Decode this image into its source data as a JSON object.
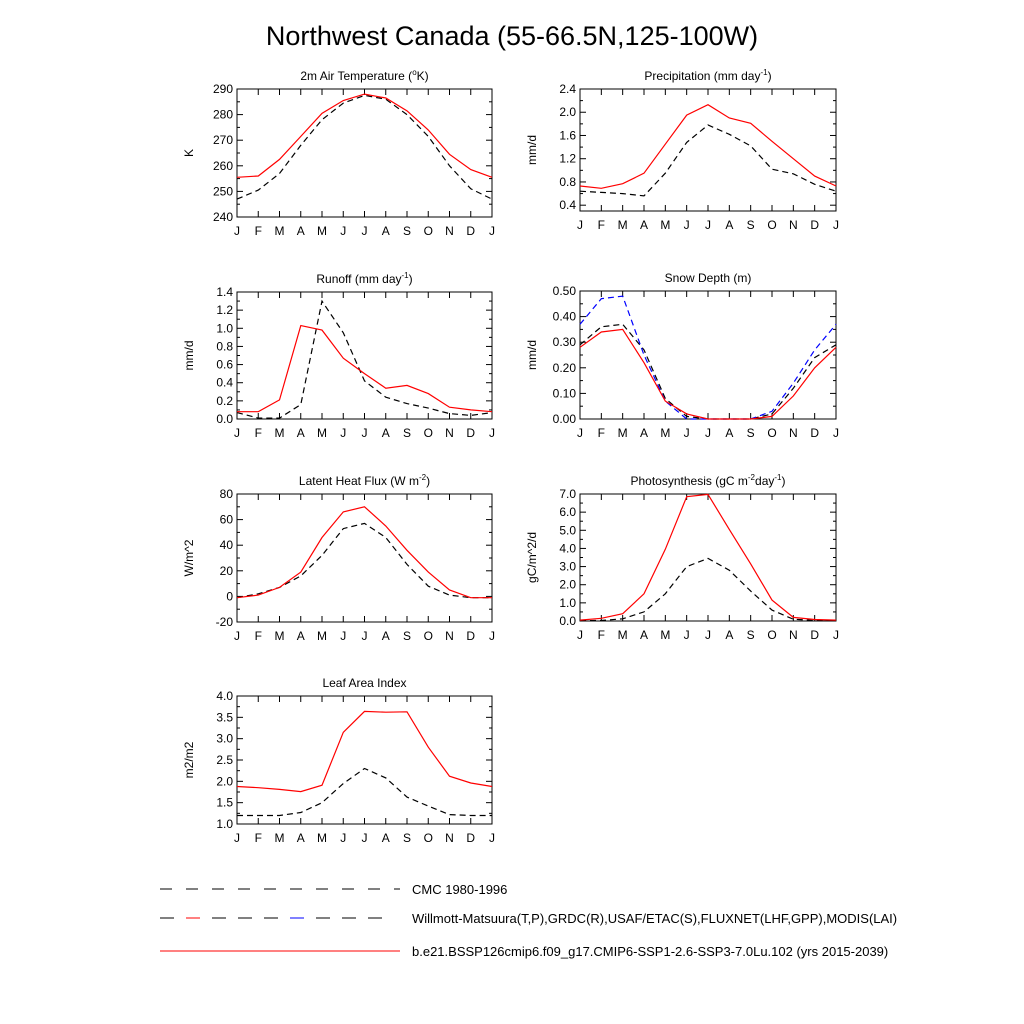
{
  "title": "Northwest Canada (55-66.5N,125-100W)",
  "months": [
    "J",
    "F",
    "M",
    "A",
    "M",
    "J",
    "J",
    "A",
    "S",
    "O",
    "N",
    "D",
    "J"
  ],
  "colors": {
    "obs": "#000000",
    "model": "#ff0000",
    "snow_obs2": "#0000ff"
  },
  "legend": [
    {
      "label": "CMC 1980-1996",
      "style": "dash-black"
    },
    {
      "label": "Willmott-Matsuura(T,P),GRDC(R),USAF/ETAC(S),FLUXNET(LHF,GPP),MODIS(LAI)",
      "style": "dash-multi"
    },
    {
      "label": "b.e21.BSSP126cmip6.f09_g17.CMIP6-SSP1-2.6-SSP3-7.0Lu.102 (yrs 2015-2039)",
      "style": "solid-red"
    }
  ],
  "chart_data": [
    {
      "id": "temp",
      "type": "line",
      "title": "2m Air Temperature (",
      "title_sup": "o",
      "title_after": "K)",
      "ylabel": "K",
      "ylim": [
        240,
        290
      ],
      "yticks": [
        240,
        250,
        260,
        270,
        280,
        290
      ],
      "ytick_labels": [
        "240",
        "250",
        "260",
        "270",
        "280",
        "290"
      ],
      "x": [
        "J",
        "F",
        "M",
        "A",
        "M",
        "J",
        "J",
        "A",
        "S",
        "O",
        "N",
        "D",
        "J"
      ],
      "series": [
        {
          "role": "obs",
          "style": "dash",
          "color": "#000000",
          "values": [
            247,
            250.5,
            257,
            268,
            278,
            284.5,
            287.5,
            286,
            280,
            271.5,
            260,
            251,
            247
          ]
        },
        {
          "role": "model",
          "style": "solid",
          "color": "#ff0000",
          "values": [
            255.5,
            256,
            262.5,
            271.5,
            280.5,
            285.5,
            288,
            286.5,
            281.5,
            274,
            264.5,
            258.5,
            255.5
          ]
        }
      ]
    },
    {
      "id": "precip",
      "type": "line",
      "title": "Precipitation (mm day",
      "title_sup": "-1",
      "title_after": ")",
      "ylabel": "mm/d",
      "ylim": [
        0.3,
        2.4
      ],
      "yticks": [
        0.4,
        0.8,
        1.2,
        1.6,
        2.0,
        2.4
      ],
      "ytick_labels": [
        "0.4",
        "0.8",
        "1.2",
        "1.6",
        "2.0",
        "2.4"
      ],
      "x": [
        "J",
        "F",
        "M",
        "A",
        "M",
        "J",
        "J",
        "A",
        "S",
        "O",
        "N",
        "D",
        "J"
      ],
      "series": [
        {
          "role": "obs",
          "style": "dash",
          "color": "#000000",
          "values": [
            0.64,
            0.62,
            0.6,
            0.56,
            0.95,
            1.48,
            1.78,
            1.62,
            1.42,
            1.02,
            0.94,
            0.76,
            0.64
          ]
        },
        {
          "role": "model",
          "style": "solid",
          "color": "#ff0000",
          "values": [
            0.73,
            0.69,
            0.77,
            0.95,
            1.45,
            1.95,
            2.13,
            1.9,
            1.81,
            1.5,
            1.2,
            0.9,
            0.73
          ]
        }
      ]
    },
    {
      "id": "runoff",
      "type": "line",
      "title": "Runoff (mm day",
      "title_sup": "-1",
      "title_after": ")",
      "ylabel": "mm/d",
      "ylim": [
        0,
        1.4
      ],
      "yticks": [
        0,
        0.2,
        0.4,
        0.6,
        0.8,
        1.0,
        1.2,
        1.4
      ],
      "ytick_labels": [
        "0.0",
        "0.2",
        "0.4",
        "0.6",
        "0.8",
        "1.0",
        "1.2",
        "1.4"
      ],
      "x": [
        "J",
        "F",
        "M",
        "A",
        "M",
        "J",
        "J",
        "A",
        "S",
        "O",
        "N",
        "D",
        "J"
      ],
      "series": [
        {
          "role": "obs",
          "style": "dash",
          "color": "#000000",
          "values": [
            0.07,
            0.01,
            0.01,
            0.16,
            1.3,
            0.95,
            0.42,
            0.24,
            0.17,
            0.12,
            0.06,
            0.04,
            0.07
          ]
        },
        {
          "role": "model",
          "style": "solid",
          "color": "#ff0000",
          "values": [
            0.08,
            0.08,
            0.21,
            1.03,
            0.98,
            0.67,
            0.5,
            0.34,
            0.37,
            0.28,
            0.13,
            0.1,
            0.08
          ]
        }
      ]
    },
    {
      "id": "snow",
      "type": "line",
      "title": "Snow Depth (m)",
      "title_sup": "",
      "title_after": "",
      "ylabel": "mm/d",
      "ylim": [
        0,
        0.5
      ],
      "yticks": [
        0,
        0.1,
        0.2,
        0.3,
        0.4,
        0.5
      ],
      "ytick_labels": [
        "0.00",
        "0.10",
        "0.20",
        "0.30",
        "0.40",
        "0.50"
      ],
      "x": [
        "J",
        "F",
        "M",
        "A",
        "M",
        "J",
        "J",
        "A",
        "S",
        "O",
        "N",
        "D",
        "J"
      ],
      "series": [
        {
          "role": "obs",
          "style": "dash",
          "color": "#000000",
          "values": [
            0.29,
            0.36,
            0.37,
            0.27,
            0.08,
            0.01,
            0.0,
            0.0,
            0.0,
            0.02,
            0.12,
            0.24,
            0.29
          ]
        },
        {
          "role": "obs2",
          "style": "dash",
          "color": "#0000ff",
          "values": [
            0.37,
            0.47,
            0.48,
            0.25,
            0.07,
            0.0,
            0.0,
            0.0,
            0.0,
            0.03,
            0.14,
            0.27,
            0.37
          ]
        },
        {
          "role": "model",
          "style": "solid",
          "color": "#ff0000",
          "values": [
            0.28,
            0.34,
            0.35,
            0.22,
            0.07,
            0.02,
            0.0,
            0.0,
            0.0,
            0.01,
            0.09,
            0.2,
            0.28
          ]
        }
      ]
    },
    {
      "id": "lhf",
      "type": "line",
      "title": "Latent Heat Flux (W m",
      "title_sup": "-2",
      "title_after": ")",
      "ylabel": "W/m^2",
      "ylim": [
        -20,
        80
      ],
      "yticks": [
        -20,
        0,
        20,
        40,
        60,
        80
      ],
      "ytick_labels": [
        "-20",
        "0",
        "20",
        "40",
        "60",
        "80"
      ],
      "x": [
        "J",
        "F",
        "M",
        "A",
        "M",
        "J",
        "J",
        "A",
        "S",
        "O",
        "N",
        "D",
        "J"
      ],
      "series": [
        {
          "role": "obs",
          "style": "dash",
          "color": "#000000",
          "values": [
            -1,
            2,
            7,
            16,
            32,
            53,
            57,
            46,
            25,
            8,
            1,
            -1,
            -1
          ]
        },
        {
          "role": "model",
          "style": "solid",
          "color": "#ff0000",
          "values": [
            -1,
            1,
            7,
            19,
            46,
            66,
            70,
            55,
            36,
            19,
            5,
            -1,
            -1
          ]
        }
      ]
    },
    {
      "id": "gpp",
      "type": "line",
      "title": "Photosynthesis (gC m",
      "title_sup": "-2",
      "title_after": "day",
      "title_sup2": "-1",
      "title_after2": ")",
      "ylabel": "gC/m^2/d",
      "ylim": [
        0,
        7
      ],
      "yticks": [
        0,
        1,
        2,
        3,
        4,
        5,
        6,
        7
      ],
      "ytick_labels": [
        "0.0",
        "1.0",
        "2.0",
        "3.0",
        "4.0",
        "5.0",
        "6.0",
        "7.0"
      ],
      "x": [
        "J",
        "F",
        "M",
        "A",
        "M",
        "J",
        "J",
        "A",
        "S",
        "O",
        "N",
        "D",
        "J"
      ],
      "series": [
        {
          "role": "obs",
          "style": "dash",
          "color": "#000000",
          "values": [
            0.02,
            0.03,
            0.12,
            0.5,
            1.5,
            3.0,
            3.45,
            2.8,
            1.65,
            0.6,
            0.1,
            0.03,
            0.02
          ]
        },
        {
          "role": "model",
          "style": "solid",
          "color": "#ff0000",
          "values": [
            0.05,
            0.15,
            0.4,
            1.5,
            3.95,
            6.85,
            6.98,
            5.05,
            3.15,
            1.15,
            0.2,
            0.08,
            0.05
          ]
        }
      ]
    },
    {
      "id": "lai",
      "type": "line",
      "title": "Leaf Area Index",
      "title_sup": "",
      "title_after": "",
      "ylabel": "m2/m2",
      "ylim": [
        1.0,
        4.0
      ],
      "yticks": [
        1.0,
        1.5,
        2.0,
        2.5,
        3.0,
        3.5,
        4.0
      ],
      "ytick_labels": [
        "1.0",
        "1.5",
        "2.0",
        "2.5",
        "3.0",
        "3.5",
        "4.0"
      ],
      "x": [
        "J",
        "F",
        "M",
        "A",
        "M",
        "J",
        "J",
        "A",
        "S",
        "O",
        "N",
        "D",
        "J"
      ],
      "series": [
        {
          "role": "obs",
          "style": "dash",
          "color": "#000000",
          "values": [
            1.2,
            1.2,
            1.2,
            1.27,
            1.5,
            1.95,
            2.3,
            2.08,
            1.63,
            1.42,
            1.22,
            1.2,
            1.2
          ]
        },
        {
          "role": "model",
          "style": "solid",
          "color": "#ff0000",
          "values": [
            1.88,
            1.85,
            1.81,
            1.76,
            1.91,
            3.15,
            3.64,
            3.62,
            3.63,
            2.8,
            2.12,
            1.96,
            1.88
          ]
        }
      ]
    }
  ]
}
